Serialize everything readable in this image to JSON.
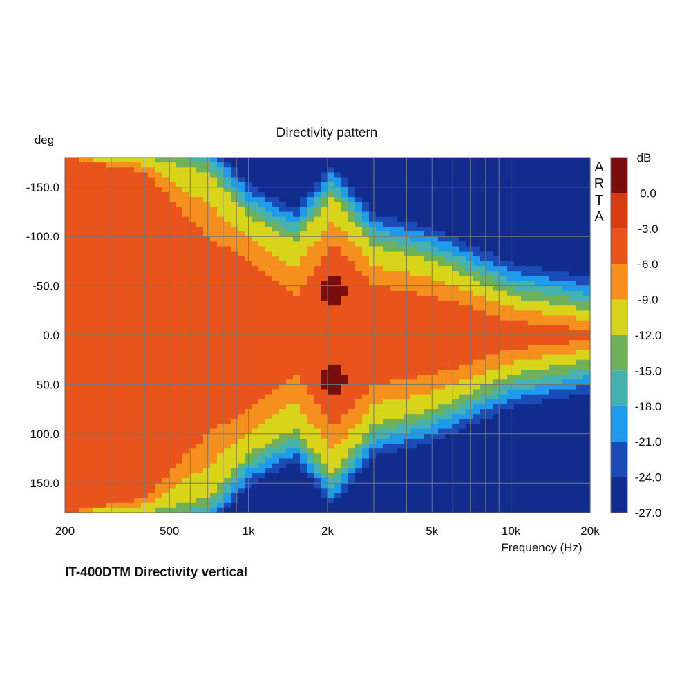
{
  "caption": "IT-400DTM Directivity vertical",
  "watermark": "ARTA",
  "chart_data": {
    "type": "heatmap",
    "title": "Directivity pattern",
    "xlabel": "Frequency (Hz)",
    "ylabel": "deg",
    "x_scale": "log",
    "xlim": [
      200,
      20000
    ],
    "ylim": [
      -180,
      180
    ],
    "x_ticks": [
      {
        "value": 200,
        "label": "200"
      },
      {
        "value": 500,
        "label": "500"
      },
      {
        "value": 1000,
        "label": "1k"
      },
      {
        "value": 2000,
        "label": "2k"
      },
      {
        "value": 5000,
        "label": "5k"
      },
      {
        "value": 10000,
        "label": "10k"
      },
      {
        "value": 20000,
        "label": "20k"
      }
    ],
    "y_ticks": [
      {
        "value": -150,
        "label": "-150.0"
      },
      {
        "value": -100,
        "label": "-100.0"
      },
      {
        "value": -50,
        "label": "-50.0"
      },
      {
        "value": 0,
        "label": "0.0"
      },
      {
        "value": 50,
        "label": "50.0"
      },
      {
        "value": 100,
        "label": "100.0"
      },
      {
        "value": 150,
        "label": "150.0"
      }
    ],
    "grid": true,
    "colorbar": {
      "unit": "dB",
      "levels": [
        {
          "value": 3.0,
          "label": "",
          "color": "#7a0d0d"
        },
        {
          "value": 0.0,
          "label": "0.0",
          "color": "#d83a12"
        },
        {
          "value": -3.0,
          "label": "-3.0",
          "color": "#e8541c"
        },
        {
          "value": -6.0,
          "label": "-6.0",
          "color": "#f5901e"
        },
        {
          "value": -9.0,
          "label": "-9.0",
          "color": "#d8d41a"
        },
        {
          "value": -12.0,
          "label": "-12.0",
          "color": "#6fb158"
        },
        {
          "value": -15.0,
          "label": "-15.0",
          "color": "#46b2b0"
        },
        {
          "value": -18.0,
          "label": "-18.0",
          "color": "#1e9bea"
        },
        {
          "value": -21.0,
          "label": "-21.0",
          "color": "#1a4cb8"
        },
        {
          "value": -24.0,
          "label": "-24.0",
          "color": "#122c8e"
        },
        {
          "value": -27.0,
          "label": "-27.0",
          "color": ""
        }
      ]
    },
    "on_axis_level_db": -3,
    "beamwidth_profile": [
      {
        "freq": 200,
        "minus6db_deg": 180,
        "minus12db_deg": 180
      },
      {
        "freq": 400,
        "minus6db_deg": 165,
        "minus12db_deg": 180
      },
      {
        "freq": 700,
        "minus6db_deg": 100,
        "minus12db_deg": 165
      },
      {
        "freq": 1000,
        "minus6db_deg": 75,
        "minus12db_deg": 120
      },
      {
        "freq": 1500,
        "minus6db_deg": 40,
        "minus12db_deg": 95
      },
      {
        "freq": 2100,
        "minus6db_deg": 95,
        "minus12db_deg": 140
      },
      {
        "freq": 3000,
        "minus6db_deg": 50,
        "minus12db_deg": 90
      },
      {
        "freq": 5000,
        "minus6db_deg": 40,
        "minus12db_deg": 75
      },
      {
        "freq": 10000,
        "minus6db_deg": 15,
        "minus12db_deg": 40
      },
      {
        "freq": 20000,
        "minus6db_deg": 5,
        "minus12db_deg": 25
      }
    ],
    "hotspots": [
      {
        "freq": 2100,
        "deg": -45,
        "level_db": 3
      },
      {
        "freq": 2100,
        "deg": 45,
        "level_db": 3
      }
    ]
  }
}
